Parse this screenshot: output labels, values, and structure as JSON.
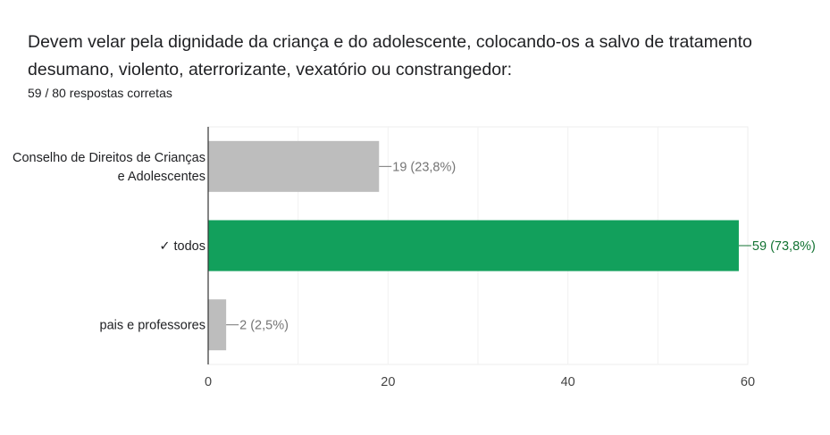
{
  "question": {
    "title_line1": "Devem velar pela dignidade da criança e do adolescente, colocando-os a salvo de tratamento",
    "title_line2": "desumano, violento, aterrorizante, vexatório ou constrangedor:",
    "summary": "59 / 80 respostas corretas"
  },
  "colors": {
    "correct": "#12a05c",
    "incorrect": "#bdbdbd",
    "correct_label": "#137333",
    "incorrect_label": "#757575"
  },
  "chart_data": {
    "type": "bar",
    "orientation": "horizontal",
    "categories": [
      [
        "Conselho de Direitos de Crianças",
        "e Adolescentes"
      ],
      [
        "✓ todos"
      ],
      [
        "pais e professores"
      ]
    ],
    "values": [
      19,
      59,
      2
    ],
    "percentages": [
      "23,8%",
      "73,8%",
      "2,5%"
    ],
    "data_labels": [
      "19 (23,8%)",
      "59 (73,8%)",
      "2 (2,5%)"
    ],
    "correct": [
      false,
      true,
      false
    ],
    "xlim": [
      0,
      60
    ],
    "xticks": [
      "0",
      "20",
      "40",
      "60"
    ],
    "grid": true
  }
}
